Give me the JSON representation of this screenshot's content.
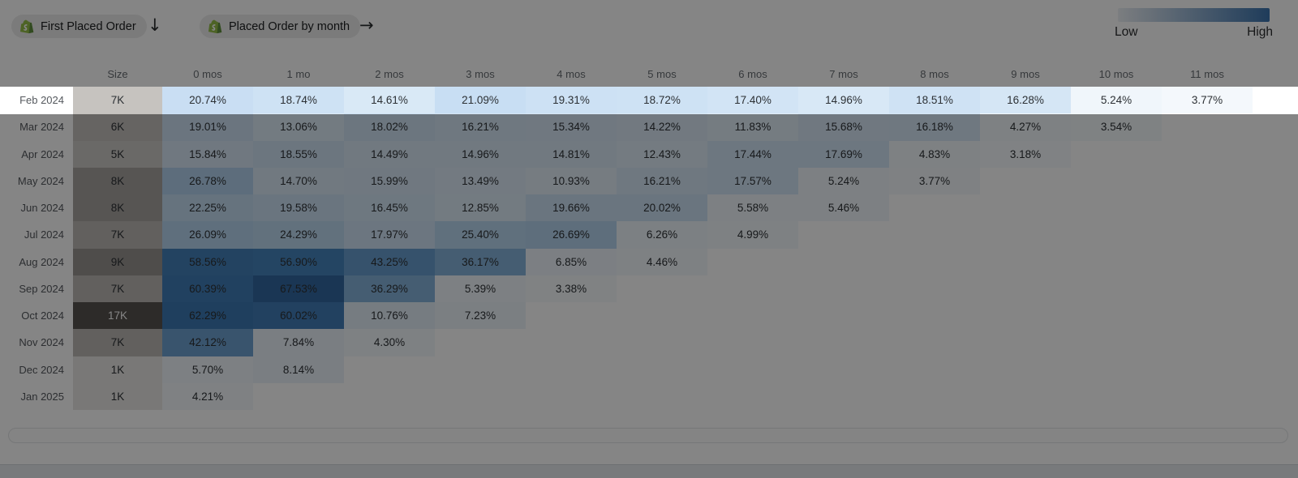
{
  "toolbar": {
    "cohort_pill_label": "First Placed Order",
    "metric_pill_label": "Placed Order by month",
    "cohort_arrow": "↓",
    "metric_arrow": "→",
    "source_icon": "shopify-bag",
    "shopify_green": "#95bf47",
    "shopify_green_dark": "#5e8e3e"
  },
  "legend": {
    "low_label": "Low",
    "high_label": "High",
    "gradient_start": "#edf1f5",
    "gradient_end": "#3c74ae"
  },
  "chart_data": {
    "type": "heatmap",
    "title": "Cohort retention: First Placed Order by Placed Order by month",
    "size_header": "Size",
    "columns": [
      "0 mos",
      "1 mo",
      "2 mos",
      "3 mos",
      "4 mos",
      "5 mos",
      "6 mos",
      "7 mos",
      "8 mos",
      "9 mos",
      "10 mos",
      "11 mos"
    ],
    "value_suffix": "%",
    "highlighted_row": "Feb 2024",
    "rows": [
      {
        "label": "Feb 2024",
        "size": "7K",
        "size_color": "#c6c3bf",
        "size_text": "#2c3034",
        "highlighted": true,
        "values": [
          20.74,
          18.74,
          14.61,
          21.09,
          19.31,
          18.72,
          17.4,
          14.96,
          18.51,
          16.28,
          5.24,
          3.77
        ]
      },
      {
        "label": "Mar 2024",
        "size": "6K",
        "size_color": "#c3c0bc",
        "size_text": "#2c3034",
        "highlighted": false,
        "values": [
          19.01,
          13.06,
          18.02,
          16.21,
          15.34,
          14.22,
          11.83,
          15.68,
          16.18,
          4.27,
          3.54
        ]
      },
      {
        "label": "Apr 2024",
        "size": "5K",
        "size_color": "#ccc9c5",
        "size_text": "#2c3034",
        "highlighted": false,
        "values": [
          15.84,
          18.55,
          14.49,
          14.96,
          14.81,
          12.43,
          17.44,
          17.69,
          4.83,
          3.18
        ]
      },
      {
        "label": "May 2024",
        "size": "8K",
        "size_color": "#a7a3a0",
        "size_text": "#2c3034",
        "highlighted": false,
        "values": [
          26.78,
          14.7,
          15.99,
          13.49,
          10.93,
          16.21,
          17.57,
          5.24,
          3.77
        ]
      },
      {
        "label": "Jun 2024",
        "size": "8K",
        "size_color": "#a7a3a0",
        "size_text": "#2c3034",
        "highlighted": false,
        "values": [
          22.25,
          19.58,
          16.45,
          12.85,
          19.66,
          20.02,
          5.58,
          5.46
        ]
      },
      {
        "label": "Jul 2024",
        "size": "7K",
        "size_color": "#bcb9b5",
        "size_text": "#2c3034",
        "highlighted": false,
        "values": [
          26.09,
          24.29,
          17.97,
          25.4,
          26.69,
          6.26,
          4.99
        ]
      },
      {
        "label": "Aug 2024",
        "size": "9K",
        "size_color": "#989490",
        "size_text": "#2c3034",
        "highlighted": false,
        "values": [
          58.56,
          56.9,
          43.25,
          36.17,
          6.85,
          4.46
        ]
      },
      {
        "label": "Sep 2024",
        "size": "7K",
        "size_color": "#bcb9b5",
        "size_text": "#2c3034",
        "highlighted": false,
        "values": [
          60.39,
          67.53,
          36.29,
          5.39,
          3.38
        ]
      },
      {
        "label": "Oct 2024",
        "size": "17K",
        "size_color": "#565350",
        "size_text": "#ffffff",
        "highlighted": false,
        "values": [
          62.29,
          60.02,
          10.76,
          7.23
        ]
      },
      {
        "label": "Nov 2024",
        "size": "7K",
        "size_color": "#bcb9b5",
        "size_text": "#2c3034",
        "highlighted": false,
        "values": [
          42.12,
          7.84,
          4.3
        ]
      },
      {
        "label": "Dec 2024",
        "size": "1K",
        "size_color": "#e8e7e5",
        "size_text": "#2c3034",
        "highlighted": false,
        "values": [
          5.7,
          8.14
        ]
      },
      {
        "label": "Jan 2025",
        "size": "1K",
        "size_color": "#e8e7e5",
        "size_text": "#2c3034",
        "highlighted": false,
        "values": [
          4.21
        ]
      }
    ],
    "color_scale": {
      "stops": [
        [
          0,
          "#fdfeff"
        ],
        [
          4,
          "#f3f8fc"
        ],
        [
          8,
          "#eaf2fa"
        ],
        [
          13,
          "#ddebf7"
        ],
        [
          17,
          "#d3e5f5"
        ],
        [
          21,
          "#c8def3"
        ],
        [
          26,
          "#b7d5ef"
        ],
        [
          36,
          "#85b3da"
        ],
        [
          44,
          "#659cce"
        ],
        [
          57,
          "#4584be"
        ],
        [
          62,
          "#3e7ab5"
        ],
        [
          68,
          "#31669f"
        ]
      ]
    }
  }
}
